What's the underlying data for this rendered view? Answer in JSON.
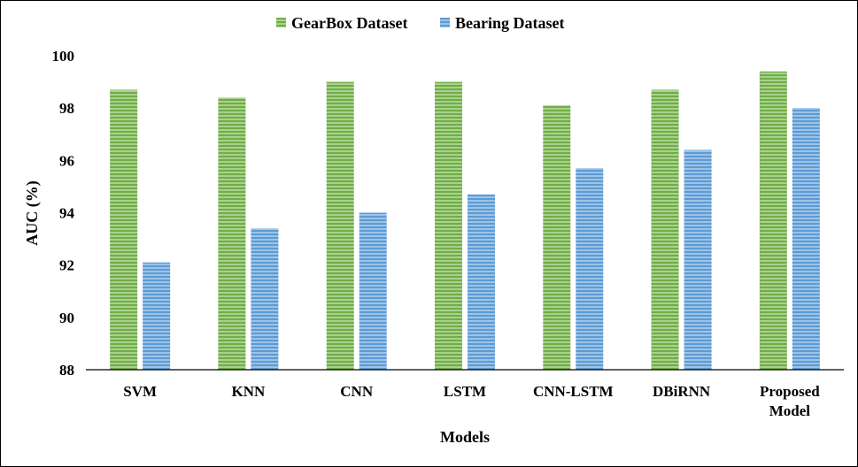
{
  "chart_data": {
    "type": "bar",
    "categories": [
      "SVM",
      "KNN",
      "CNN",
      "LSTM",
      "CNN-LSTM",
      "DBiRNN",
      "Proposed Model"
    ],
    "category_lines": [
      [
        "SVM"
      ],
      [
        "KNN"
      ],
      [
        "CNN"
      ],
      [
        "LSTM"
      ],
      [
        "CNN-LSTM"
      ],
      [
        "DBiRNN"
      ],
      [
        "Proposed",
        "Model"
      ]
    ],
    "series": [
      {
        "name": "GearBox Dataset",
        "values": [
          98.7,
          98.4,
          99.0,
          99.0,
          98.1,
          98.7,
          99.4
        ],
        "color": "#70AD47",
        "stripe": "#A9D18E"
      },
      {
        "name": "Bearing Dataset",
        "values": [
          92.1,
          93.4,
          94.0,
          94.7,
          95.7,
          96.4,
          98.0
        ],
        "color": "#5B9BD5",
        "stripe": "#9DC3E6"
      }
    ],
    "xlabel": "Models",
    "ylabel": "AUC (%)",
    "ylim": [
      88,
      100
    ],
    "yticks": [
      88,
      90,
      92,
      94,
      96,
      98,
      100
    ],
    "legend_position": "top",
    "grid": false
  }
}
